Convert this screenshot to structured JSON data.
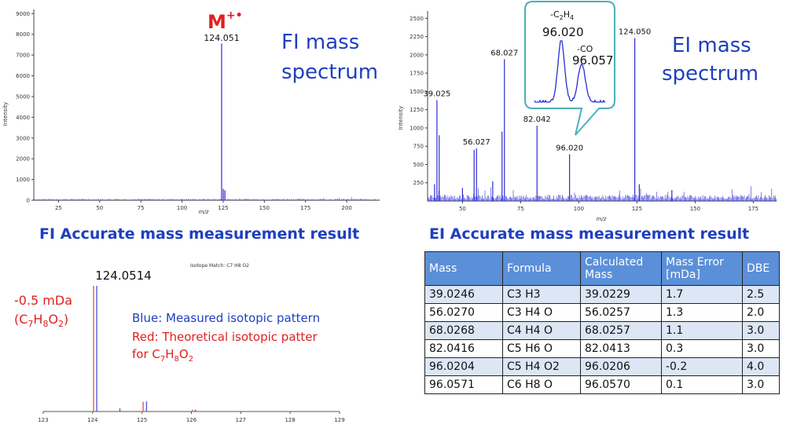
{
  "chart_data": [
    {
      "type": "line",
      "title": "FI mass spectrum",
      "xlabel": "m/z",
      "ylabel": "Intensity",
      "xlim": [
        10,
        220
      ],
      "ylim": [
        0,
        9200
      ],
      "xticks": [
        25,
        50,
        75,
        100,
        125,
        150,
        175,
        200
      ],
      "yticks": [
        0,
        1000,
        2000,
        3000,
        4000,
        5000,
        6000,
        7000,
        8000,
        9000
      ],
      "series": [
        {
          "x": [
            124.051,
            125.05,
            126.05
          ],
          "values": [
            7550,
            550,
            480
          ]
        }
      ],
      "annotations": [
        {
          "text": "124.051",
          "x": 124.051,
          "y": 7550
        },
        {
          "text": "M",
          "superscript": "+•",
          "x": 124.051,
          "y": 8800
        }
      ]
    },
    {
      "type": "line",
      "title": "EI mass spectrum",
      "xlabel": "m/z",
      "ylabel": "Intensity",
      "xlim": [
        35,
        185
      ],
      "ylim": [
        0,
        2600
      ],
      "xticks": [
        50,
        75,
        100,
        125,
        150,
        175
      ],
      "yticks": [
        250,
        500,
        750,
        1000,
        1250,
        1500,
        1750,
        2000,
        2250,
        2500
      ],
      "series": [
        {
          "x": [
            38,
            39.025,
            40,
            50,
            55,
            56.027,
            63,
            67,
            68.027,
            82.042,
            96.02,
            124.05,
            126,
            140
          ],
          "values": [
            230,
            1380,
            900,
            180,
            700,
            720,
            270,
            950,
            1940,
            1030,
            640,
            2230,
            230,
            150
          ]
        }
      ],
      "annotations": [
        {
          "text": "39.025",
          "x": 39.025,
          "y": 1380
        },
        {
          "text": "56.027",
          "x": 56.027,
          "y": 720
        },
        {
          "text": "68.027",
          "x": 68.027,
          "y": 1940
        },
        {
          "text": "82.042",
          "x": 82.042,
          "y": 1030
        },
        {
          "text": "96.020",
          "x": 96.02,
          "y": 640
        },
        {
          "text": "124.050",
          "x": 124.05,
          "y": 2230
        }
      ],
      "inset": {
        "labels": [
          {
            "text": "-C2H4",
            "value": "96.020"
          },
          {
            "text": "-CO",
            "value": "96.057"
          }
        ]
      }
    },
    {
      "type": "bar",
      "title": "Isotope Match: C7 H8 O2",
      "xlabel": "",
      "ylabel": "",
      "xlim": [
        123,
        129
      ],
      "xticks": [
        123,
        124,
        125,
        126,
        127,
        128,
        129
      ],
      "series": [
        {
          "name": "Blue: Measured isotopic pattern",
          "x": [
            124.0514,
            124.52,
            125.06,
            126.05
          ],
          "values": [
            100,
            2.5,
            8,
            1.5
          ]
        },
        {
          "name": "Red: Theoretical isotopic patter",
          "x": [
            124.0519,
            125.055,
            126.056
          ],
          "values": [
            100,
            7.8,
            1.4
          ]
        }
      ],
      "annotations": [
        {
          "text": "124.0514",
          "x": 124.0514,
          "y": 100
        }
      ]
    }
  ],
  "fi": {
    "label_line1": "FI mass",
    "label_line2": "spectrum",
    "peak_label": "124.051",
    "ion_label": "M",
    "ion_sup": "+•",
    "heading": "FI Accurate mass measurement result",
    "color": "#1f3fbf"
  },
  "ei": {
    "label_line1": "EI mass",
    "label_line2": "spectrum",
    "heading": "EI Accurate mass measurement result",
    "inset_loss1": "-C",
    "inset_loss1_sub": "2",
    "inset_loss1_tail": "H",
    "inset_loss1_sub2": "4",
    "inset_value1": "96.020",
    "inset_loss2": "-CO",
    "inset_value2": "96.057"
  },
  "iso": {
    "title": "Isotope Match: C7 H8 O2",
    "peak_label": "124.0514",
    "error_line1": "-0.5 mDa",
    "formula_open": "(C",
    "formula_c": "7",
    "formula_h": "H",
    "formula_h_n": "8",
    "formula_o": "O",
    "formula_o_n": "2",
    "formula_close": ")",
    "legend_blue": "Blue: Measured isotopic pattern",
    "legend_red": "Red: Theoretical isotopic patter",
    "legend_red2_prefix": "for C",
    "legend_red2_c": "7",
    "legend_red2_h": "H",
    "legend_red2_h_n": "8",
    "legend_red2_o": "O",
    "legend_red2_o_n": "2"
  },
  "table": {
    "headers": [
      "Mass",
      "Formula",
      "Calculated Mass",
      "Mass Error [mDa]",
      "DBE"
    ],
    "rows": [
      [
        "39.0246",
        "C3 H3",
        "39.0229",
        "1.7",
        "2.5"
      ],
      [
        "56.0270",
        "C3 H4 O",
        "56.0257",
        "1.3",
        "2.0"
      ],
      [
        "68.0268",
        "C4 H4 O",
        "68.0257",
        "1.1",
        "3.0"
      ],
      [
        "82.0416",
        "C5 H6 O",
        "82.0413",
        "0.3",
        "3.0"
      ],
      [
        "96.0204",
        "C5 H4 O2",
        "96.0206",
        "-0.2",
        "4.0"
      ],
      [
        "96.0571",
        "C6 H8 O",
        "96.0570",
        "0.1",
        "3.0"
      ]
    ]
  },
  "colors": {
    "spectrum": "#2b2bd6",
    "measured": "#5a5adf",
    "theoretical": "#e85a5a",
    "red_text": "#e02020",
    "blue_text": "#1f3fbf"
  }
}
